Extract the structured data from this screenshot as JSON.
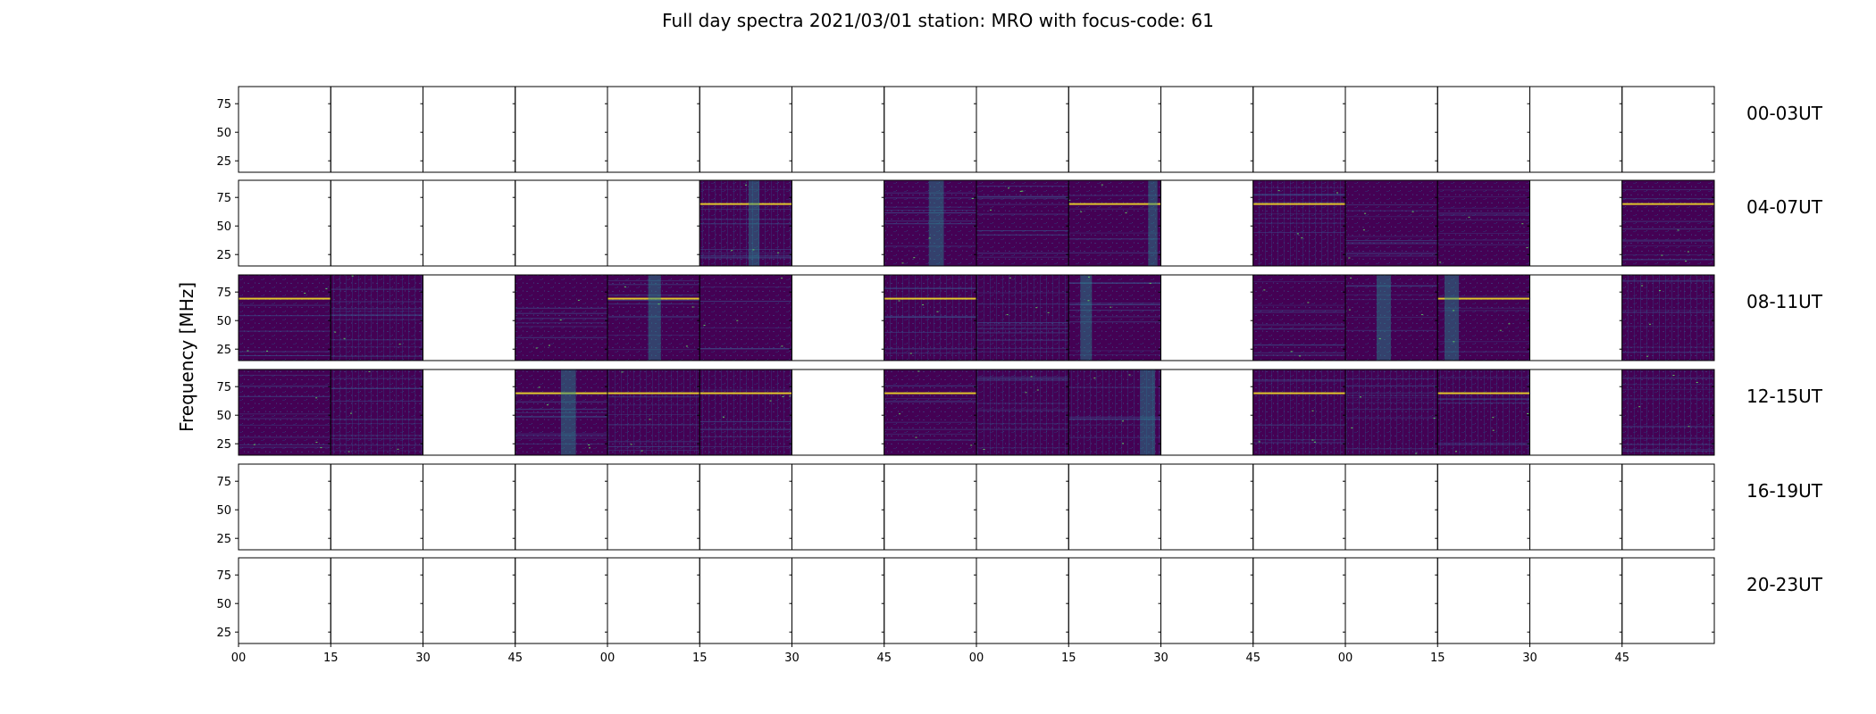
{
  "chart_data": {
    "type": "heatmap",
    "title": "Full day spectra 2021/03/01 station: MRO with focus-code: 61",
    "ylabel": "Frequency [MHz]",
    "ylim": [
      15,
      90
    ],
    "y_ticks": [
      "25",
      "50",
      "75"
    ],
    "x_tick_labels": [
      "00",
      "15",
      "30",
      "45",
      "00",
      "15",
      "30",
      "45",
      "00",
      "15",
      "30",
      "45",
      "00",
      "15",
      "30",
      "45"
    ],
    "panels_per_row": 16,
    "colormap": [
      "#440154",
      "#3b528b",
      "#21918c",
      "#5ec962",
      "#fde725"
    ],
    "rows": [
      {
        "label": "00-03UT",
        "has_data": [
          false,
          false,
          false,
          false,
          false,
          false,
          false,
          false,
          false,
          false,
          false,
          false,
          false,
          false,
          false,
          false
        ]
      },
      {
        "label": "04-07UT",
        "has_data": [
          false,
          false,
          false,
          false,
          false,
          true,
          false,
          true,
          true,
          true,
          false,
          true,
          true,
          true,
          false,
          true
        ]
      },
      {
        "label": "08-11UT",
        "has_data": [
          true,
          true,
          false,
          true,
          true,
          true,
          false,
          true,
          true,
          true,
          false,
          true,
          true,
          true,
          false,
          true
        ]
      },
      {
        "label": "12-15UT",
        "has_data": [
          true,
          true,
          false,
          true,
          true,
          true,
          false,
          true,
          true,
          true,
          false,
          true,
          true,
          true,
          false,
          true
        ]
      },
      {
        "label": "16-19UT",
        "has_data": [
          false,
          false,
          false,
          false,
          false,
          false,
          false,
          false,
          false,
          false,
          false,
          false,
          false,
          false,
          false,
          false
        ]
      },
      {
        "label": "20-23UT",
        "has_data": [
          false,
          false,
          false,
          false,
          false,
          false,
          false,
          false,
          false,
          false,
          false,
          false,
          false,
          false,
          false,
          false
        ]
      }
    ]
  }
}
